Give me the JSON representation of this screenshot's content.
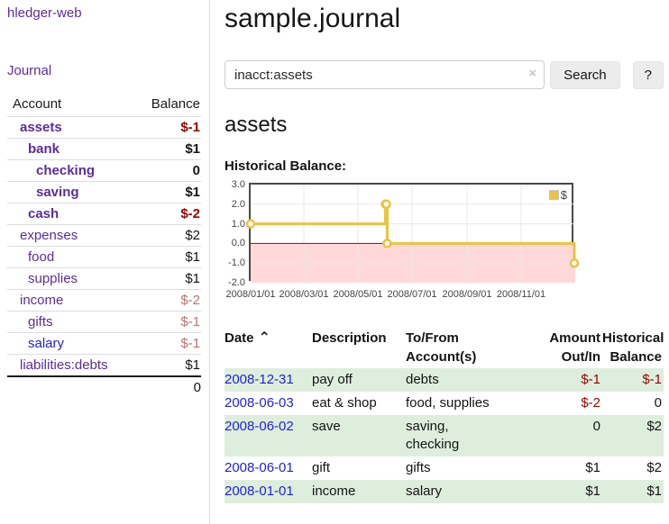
{
  "colors": {
    "purple_link": "#5b2d9b",
    "blue_link": "#2222dd",
    "negative_strong": "#990000",
    "negative_muted": "#bb7272",
    "row_green": "#ddeedd",
    "series_gold": "#edc240",
    "chart_negative_fill": "#ffd9d9",
    "zero_line": "#990000",
    "grid_line": "#e8e8e8"
  },
  "app_title": "hledger-web",
  "sidebar": {
    "journal_link": "Journal",
    "accounts_table": {
      "headers": {
        "account": "Account",
        "balance": "Balance"
      },
      "rows": [
        {
          "name": "assets",
          "depth": 0,
          "bold": true,
          "balance": "$-1"
        },
        {
          "name": "bank",
          "depth": 1,
          "bold": true,
          "balance": "$1"
        },
        {
          "name": "checking",
          "depth": 2,
          "bold": true,
          "balance": "0"
        },
        {
          "name": "saving",
          "depth": 2,
          "bold": true,
          "balance": "$1"
        },
        {
          "name": "cash",
          "depth": 1,
          "bold": true,
          "balance": "$-2"
        },
        {
          "name": "expenses",
          "depth": 0,
          "bold": false,
          "balance": "$2"
        },
        {
          "name": "food",
          "depth": 1,
          "bold": false,
          "balance": "$1"
        },
        {
          "name": "supplies",
          "depth": 1,
          "bold": false,
          "balance": "$1"
        },
        {
          "name": "income",
          "depth": 0,
          "bold": false,
          "balance": "$-2"
        },
        {
          "name": "gifts",
          "depth": 1,
          "bold": false,
          "balance": "$-1"
        },
        {
          "name": "salary",
          "depth": 1,
          "bold": false,
          "balance": "$-1",
          "unvisited": true
        },
        {
          "name": "liabilities:debts",
          "depth": 0,
          "bold": false,
          "balance": "$1"
        }
      ],
      "total": "0"
    }
  },
  "main": {
    "title": "sample.journal",
    "search": {
      "value": "inacct:assets",
      "clear_icon": "×",
      "search_button": "Search",
      "help_button": "?"
    },
    "account_heading": "assets",
    "chart_heading": "Historical Balance:"
  },
  "chart_data": {
    "type": "line",
    "title": "Historical Balance",
    "step": "after",
    "legend": [
      {
        "label": "$",
        "color": "#edc240"
      }
    ],
    "legend_position": "top-right",
    "x_range": [
      "2008-01-01",
      "2009-01-01"
    ],
    "x_tick_labels": [
      "2008/01/01",
      "2008/03/01",
      "2008/05/01",
      "2008/07/01",
      "2008/09/01",
      "2008/11/01"
    ],
    "y_tick_labels": [
      "3.0",
      "2.0",
      "1.0",
      "0.0",
      "-1.0",
      "-2.0"
    ],
    "ylim": [
      -2,
      3
    ],
    "grid": true,
    "points": [
      {
        "date": "2008-01-01",
        "value": 1
      },
      {
        "date": "2008-06-01",
        "value": 2
      },
      {
        "date": "2008-06-02",
        "value": 2
      },
      {
        "date": "2008-06-03",
        "value": 0
      },
      {
        "date": "2008-12-31",
        "value": -1
      }
    ]
  },
  "register_table": {
    "headers": {
      "date": "Date",
      "sort_icon": "⌃",
      "description": "Description",
      "accounts": "To/From\nAccount(s)",
      "amount": "Amount\nOut/In",
      "balance": "Historical\nBalance"
    },
    "rows": [
      {
        "date": "2008-12-31",
        "description": "pay off",
        "accounts": "debts",
        "amount": "$-1",
        "balance": "$-1",
        "shaded": true
      },
      {
        "date": "2008-06-03",
        "description": "eat & shop",
        "accounts": "food, supplies",
        "amount": "$-2",
        "balance": "0",
        "shaded": false
      },
      {
        "date": "2008-06-02",
        "description": "save",
        "accounts": "saving,\nchecking",
        "amount": "0",
        "balance": "$2",
        "shaded": true
      },
      {
        "date": "2008-06-01",
        "description": "gift",
        "accounts": "gifts",
        "amount": "$1",
        "balance": "$2",
        "shaded": false
      },
      {
        "date": "2008-01-01",
        "description": "income",
        "accounts": "salary",
        "amount": "$1",
        "balance": "$1",
        "shaded": true
      }
    ]
  }
}
